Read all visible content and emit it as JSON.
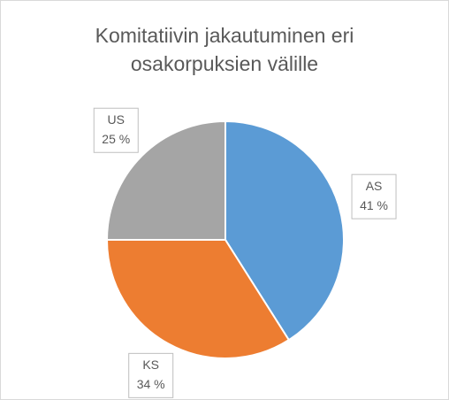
{
  "chart_data": {
    "type": "pie",
    "title": [
      "Komitatiivin jakautuminen eri",
      "osakorpuksien välille"
    ],
    "categories": [
      "AS",
      "KS",
      "US"
    ],
    "values": [
      41,
      34,
      25
    ],
    "value_labels": [
      "41 %",
      "34 %",
      "25 %"
    ],
    "colors": [
      "#5b9bd5",
      "#ed7d31",
      "#a5a5a5"
    ]
  }
}
